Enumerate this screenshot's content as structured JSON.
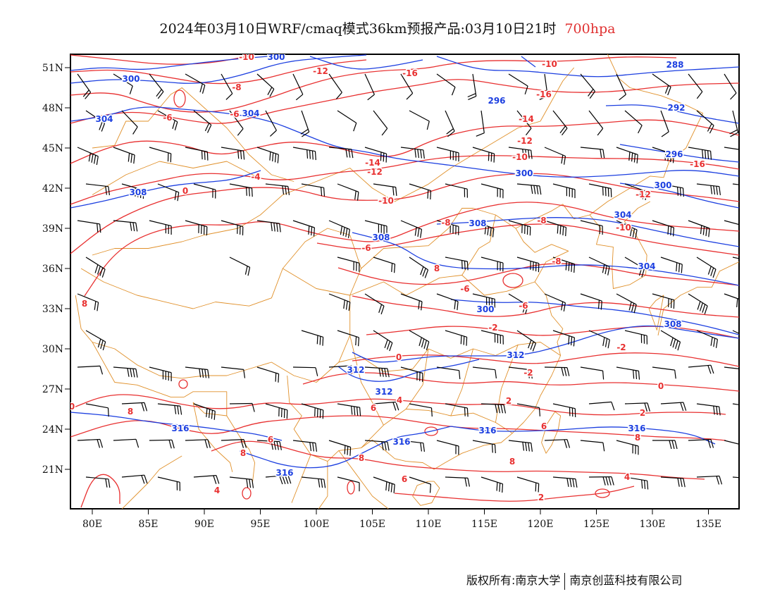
{
  "title": {
    "text": "2024年03月10日WRF/cmaq模式36km预报产品:03月10日21时",
    "level": "700hpa"
  },
  "map": {
    "region": "East Asia",
    "projection": "lat-lon",
    "lon_range": [
      78,
      138
    ],
    "lat_range": [
      18,
      52
    ],
    "lon_ticks": [
      "80E",
      "85E",
      "90E",
      "95E",
      "100E",
      "105E",
      "110E",
      "115E",
      "120E",
      "125E",
      "130E",
      "135E"
    ],
    "lat_ticks": [
      "51N",
      "48N",
      "45N",
      "42N",
      "39N",
      "36N",
      "33N",
      "30N",
      "27N",
      "24N",
      "21N"
    ],
    "colors": {
      "geopotential_contour": "#1c3fe0",
      "temperature_contour": "#e83030",
      "boundaries": "#e0902a",
      "wind_barbs": "#000000"
    },
    "geopotential_labels": [
      "300",
      "300",
      "304",
      "304",
      "296",
      "292",
      "288",
      "296",
      "300",
      "300",
      "304",
      "308",
      "308",
      "308",
      "304",
      "300",
      "308",
      "312",
      "312",
      "312",
      "316",
      "316",
      "316",
      "316",
      "316"
    ],
    "temperature_labels": [
      "-10",
      "-12",
      "-16",
      "-10",
      "-16",
      "-8",
      "-6",
      "-6",
      "-14",
      "-12",
      "-14",
      "-12",
      "-10",
      "-16",
      "-4",
      "0",
      "-10",
      "-12",
      "-10",
      "-8",
      "-8",
      "-6",
      "-6",
      "-8",
      "-6",
      "-2",
      "-2",
      "0",
      "-2",
      "0",
      "2",
      "0",
      "2",
      "4",
      "6",
      "8",
      "6",
      "8",
      "8",
      "8",
      "6",
      "4",
      "2",
      "4",
      "6",
      "8",
      "8",
      "8"
    ]
  },
  "footer": {
    "left": "版权所有:南京大学",
    "right": "南京创蓝科技有限公司"
  }
}
